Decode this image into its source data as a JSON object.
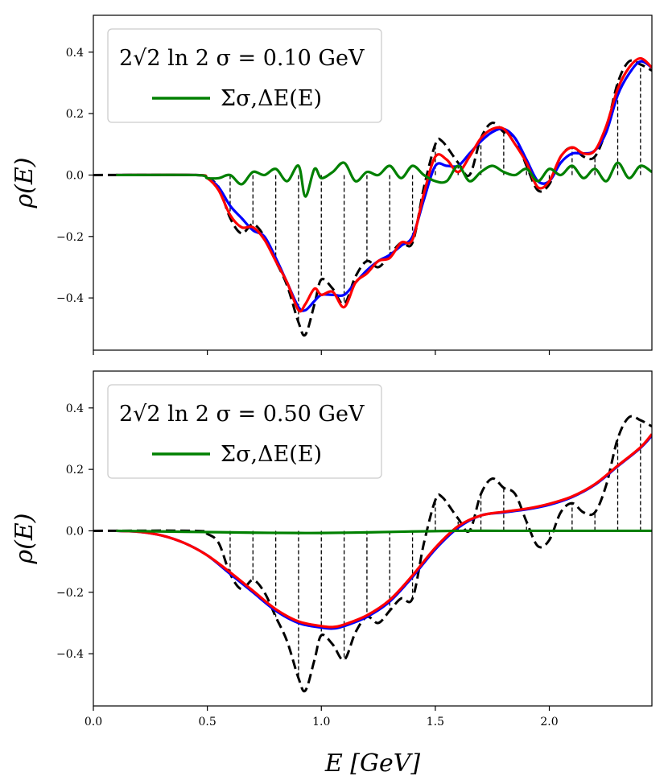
{
  "chart_data": [
    {
      "type": "line",
      "panel": "top",
      "xlim": [
        0.0,
        2.45
      ],
      "ylim": [
        -0.57,
        0.52
      ],
      "ylabel": "ρ(E)",
      "xlabel": "",
      "x_ticks": [
        0.0,
        0.5,
        1.0,
        1.5,
        2.0
      ],
      "x_tick_labels": [
        "",
        "",
        "",
        "",
        ""
      ],
      "y_ticks": [
        -0.4,
        -0.2,
        0.0,
        0.2,
        0.4
      ],
      "y_tick_labels": [
        "−0.4",
        "−0.2",
        "0.0",
        "0.2",
        "0.4"
      ],
      "legend": {
        "placement": "top-left",
        "header": "2√2 ln 2 σ = 0.10 GeV",
        "entries": [
          {
            "label": "Σσ,ΔE(E)",
            "color": "#008000"
          }
        ]
      },
      "grid": false,
      "series": [
        {
          "color": "#000000",
          "style": "dashed",
          "x": [
            0.0,
            0.45,
            0.5,
            0.55,
            0.6,
            0.65,
            0.7,
            0.75,
            0.8,
            0.85,
            0.9,
            0.93,
            0.97,
            1.0,
            1.05,
            1.1,
            1.15,
            1.2,
            1.25,
            1.3,
            1.35,
            1.4,
            1.45,
            1.5,
            1.53,
            1.6,
            1.65,
            1.7,
            1.75,
            1.8,
            1.85,
            1.9,
            1.95,
            2.0,
            2.05,
            2.1,
            2.15,
            2.2,
            2.25,
            2.3,
            2.35,
            2.4,
            2.45
          ],
          "y": [
            0.0,
            0.0,
            -0.01,
            -0.04,
            -0.14,
            -0.19,
            -0.16,
            -0.2,
            -0.28,
            -0.36,
            -0.48,
            -0.52,
            -0.42,
            -0.34,
            -0.37,
            -0.42,
            -0.33,
            -0.28,
            -0.3,
            -0.26,
            -0.22,
            -0.22,
            -0.04,
            0.1,
            0.11,
            0.04,
            0.0,
            0.12,
            0.17,
            0.14,
            0.12,
            0.03,
            -0.05,
            -0.03,
            0.06,
            0.09,
            0.06,
            0.06,
            0.15,
            0.3,
            0.37,
            0.36,
            0.34
          ]
        },
        {
          "color": "#0000ff",
          "style": "solid",
          "x": [
            0.1,
            0.45,
            0.5,
            0.55,
            0.6,
            0.65,
            0.7,
            0.75,
            0.8,
            0.85,
            0.9,
            0.93,
            0.97,
            1.0,
            1.05,
            1.1,
            1.15,
            1.2,
            1.25,
            1.3,
            1.35,
            1.4,
            1.45,
            1.5,
            1.55,
            1.6,
            1.65,
            1.7,
            1.75,
            1.8,
            1.85,
            1.9,
            1.95,
            2.0,
            2.05,
            2.1,
            2.15,
            2.2,
            2.25,
            2.3,
            2.35,
            2.4,
            2.45
          ],
          "y": [
            0.0,
            0.0,
            -0.01,
            -0.04,
            -0.1,
            -0.14,
            -0.18,
            -0.2,
            -0.27,
            -0.35,
            -0.43,
            -0.44,
            -0.41,
            -0.39,
            -0.39,
            -0.39,
            -0.35,
            -0.31,
            -0.28,
            -0.26,
            -0.23,
            -0.2,
            -0.08,
            0.03,
            0.03,
            0.03,
            0.07,
            0.11,
            0.14,
            0.15,
            0.12,
            0.05,
            -0.02,
            -0.02,
            0.04,
            0.07,
            0.07,
            0.08,
            0.14,
            0.26,
            0.33,
            0.37,
            0.35
          ]
        },
        {
          "color": "#ff0000",
          "style": "solid",
          "x": [
            0.1,
            0.45,
            0.5,
            0.55,
            0.6,
            0.65,
            0.7,
            0.75,
            0.8,
            0.85,
            0.9,
            0.93,
            0.97,
            1.0,
            1.05,
            1.1,
            1.15,
            1.2,
            1.25,
            1.3,
            1.35,
            1.4,
            1.45,
            1.5,
            1.55,
            1.6,
            1.65,
            1.7,
            1.75,
            1.8,
            1.85,
            1.9,
            1.95,
            2.0,
            2.05,
            2.1,
            2.15,
            2.2,
            2.25,
            2.3,
            2.35,
            2.4,
            2.45
          ],
          "y": [
            0.0,
            0.0,
            -0.01,
            -0.05,
            -0.13,
            -0.17,
            -0.17,
            -0.21,
            -0.28,
            -0.35,
            -0.44,
            -0.42,
            -0.37,
            -0.39,
            -0.38,
            -0.43,
            -0.35,
            -0.32,
            -0.28,
            -0.27,
            -0.22,
            -0.21,
            -0.06,
            0.06,
            0.05,
            0.01,
            0.06,
            0.12,
            0.15,
            0.15,
            0.1,
            0.04,
            -0.04,
            -0.02,
            0.06,
            0.09,
            0.07,
            0.08,
            0.16,
            0.28,
            0.35,
            0.38,
            0.35
          ]
        },
        {
          "color": "#008000",
          "style": "solid",
          "x": [
            0.1,
            0.45,
            0.5,
            0.55,
            0.6,
            0.65,
            0.7,
            0.75,
            0.8,
            0.85,
            0.9,
            0.93,
            0.97,
            1.0,
            1.05,
            1.1,
            1.15,
            1.2,
            1.25,
            1.3,
            1.35,
            1.4,
            1.45,
            1.5,
            1.55,
            1.6,
            1.65,
            1.7,
            1.75,
            1.8,
            1.85,
            1.9,
            1.95,
            2.0,
            2.05,
            2.1,
            2.15,
            2.2,
            2.25,
            2.3,
            2.35,
            2.4,
            2.45
          ],
          "y": [
            0.0,
            0.0,
            -0.01,
            -0.01,
            0.0,
            -0.03,
            0.01,
            0.0,
            0.02,
            -0.02,
            0.03,
            -0.07,
            0.02,
            -0.01,
            0.01,
            0.04,
            -0.02,
            0.01,
            0.0,
            0.03,
            -0.01,
            0.03,
            0.0,
            -0.02,
            -0.02,
            0.03,
            -0.02,
            0.01,
            0.03,
            0.01,
            0.0,
            0.02,
            -0.02,
            0.02,
            0.0,
            0.03,
            -0.01,
            0.02,
            -0.02,
            0.04,
            -0.01,
            0.03,
            0.01
          ]
        }
      ],
      "stems": {
        "x": [
          0.6,
          0.7,
          0.8,
          0.9,
          1.0,
          1.1,
          1.2,
          1.3,
          1.4,
          1.5,
          1.6,
          1.7,
          1.8,
          1.9,
          2.0,
          2.1,
          2.2,
          2.3,
          2.4
        ],
        "y": [
          -0.14,
          -0.16,
          -0.28,
          -0.48,
          -0.34,
          -0.42,
          -0.28,
          -0.26,
          -0.22,
          0.1,
          0.03,
          0.12,
          0.14,
          0.03,
          -0.03,
          0.09,
          0.06,
          0.3,
          0.36
        ]
      }
    },
    {
      "type": "line",
      "panel": "bottom",
      "xlim": [
        0.0,
        2.45
      ],
      "ylim": [
        -0.57,
        0.52
      ],
      "ylabel": "ρ(E)",
      "xlabel": "E [GeV]",
      "x_ticks": [
        0.0,
        0.5,
        1.0,
        1.5,
        2.0
      ],
      "x_tick_labels": [
        "0.0",
        "0.5",
        "1.0",
        "1.5",
        "2.0"
      ],
      "y_ticks": [
        -0.4,
        -0.2,
        0.0,
        0.2,
        0.4
      ],
      "y_tick_labels": [
        "−0.4",
        "−0.2",
        "0.0",
        "0.2",
        "0.4"
      ],
      "legend": {
        "placement": "top-left",
        "header": "2√2 ln 2 σ = 0.50 GeV",
        "entries": [
          {
            "label": "Σσ,ΔE(E)",
            "color": "#008000"
          }
        ]
      },
      "grid": false,
      "series": [
        {
          "color": "#000000",
          "style": "dashed",
          "x": [
            0.0,
            0.45,
            0.5,
            0.55,
            0.6,
            0.65,
            0.7,
            0.75,
            0.8,
            0.85,
            0.9,
            0.93,
            0.97,
            1.0,
            1.05,
            1.1,
            1.15,
            1.2,
            1.25,
            1.3,
            1.35,
            1.4,
            1.45,
            1.5,
            1.53,
            1.6,
            1.65,
            1.7,
            1.75,
            1.8,
            1.85,
            1.9,
            1.95,
            2.0,
            2.05,
            2.1,
            2.15,
            2.2,
            2.25,
            2.3,
            2.35,
            2.4,
            2.45
          ],
          "y": [
            0.0,
            0.0,
            -0.01,
            -0.04,
            -0.14,
            -0.19,
            -0.16,
            -0.2,
            -0.28,
            -0.36,
            -0.48,
            -0.52,
            -0.42,
            -0.34,
            -0.37,
            -0.42,
            -0.33,
            -0.28,
            -0.3,
            -0.26,
            -0.22,
            -0.22,
            -0.04,
            0.1,
            0.11,
            0.04,
            0.0,
            0.12,
            0.17,
            0.14,
            0.12,
            0.03,
            -0.05,
            -0.03,
            0.06,
            0.09,
            0.06,
            0.06,
            0.15,
            0.3,
            0.37,
            0.36,
            0.34
          ]
        },
        {
          "color": "#0000ff",
          "style": "solid",
          "x": [
            0.1,
            0.2,
            0.3,
            0.4,
            0.5,
            0.6,
            0.7,
            0.8,
            0.9,
            1.0,
            1.05,
            1.1,
            1.2,
            1.3,
            1.4,
            1.5,
            1.6,
            1.7,
            1.8,
            1.9,
            2.0,
            2.1,
            2.2,
            2.3,
            2.4,
            2.45
          ],
          "y": [
            0.0,
            -0.003,
            -0.015,
            -0.04,
            -0.08,
            -0.14,
            -0.2,
            -0.26,
            -0.3,
            -0.315,
            -0.318,
            -0.31,
            -0.28,
            -0.23,
            -0.15,
            -0.06,
            0.01,
            0.05,
            0.06,
            0.07,
            0.085,
            0.11,
            0.15,
            0.21,
            0.27,
            0.31
          ]
        },
        {
          "color": "#ff0000",
          "style": "solid",
          "x": [
            0.1,
            0.2,
            0.3,
            0.4,
            0.5,
            0.6,
            0.7,
            0.8,
            0.9,
            1.0,
            1.05,
            1.1,
            1.2,
            1.3,
            1.4,
            1.5,
            1.6,
            1.7,
            1.8,
            1.9,
            2.0,
            2.1,
            2.2,
            2.3,
            2.4,
            2.45
          ],
          "y": [
            0.0,
            -0.003,
            -0.015,
            -0.04,
            -0.08,
            -0.135,
            -0.195,
            -0.255,
            -0.295,
            -0.31,
            -0.313,
            -0.305,
            -0.275,
            -0.225,
            -0.145,
            -0.055,
            0.015,
            0.05,
            0.062,
            0.072,
            0.088,
            0.112,
            0.152,
            0.212,
            0.272,
            0.315
          ]
        },
        {
          "color": "#008000",
          "style": "solid",
          "x": [
            0.1,
            0.3,
            0.5,
            0.7,
            0.9,
            1.0,
            1.2,
            1.4,
            1.6,
            1.8,
            2.0,
            2.2,
            2.45
          ],
          "y": [
            0.0,
            -0.002,
            -0.004,
            -0.006,
            -0.007,
            -0.007,
            -0.005,
            -0.002,
            0.0,
            0.0,
            0.0,
            0.0,
            0.0
          ]
        }
      ],
      "stems": {
        "x": [
          0.6,
          0.7,
          0.8,
          0.9,
          1.0,
          1.1,
          1.2,
          1.3,
          1.4,
          1.5,
          1.6,
          1.7,
          1.8,
          1.9,
          2.0,
          2.1,
          2.2,
          2.3,
          2.4
        ],
        "y": [
          -0.14,
          -0.16,
          -0.28,
          -0.48,
          -0.34,
          -0.42,
          -0.28,
          -0.26,
          -0.22,
          0.1,
          0.03,
          0.12,
          0.14,
          0.03,
          -0.03,
          0.09,
          0.06,
          0.3,
          0.36
        ]
      }
    }
  ]
}
